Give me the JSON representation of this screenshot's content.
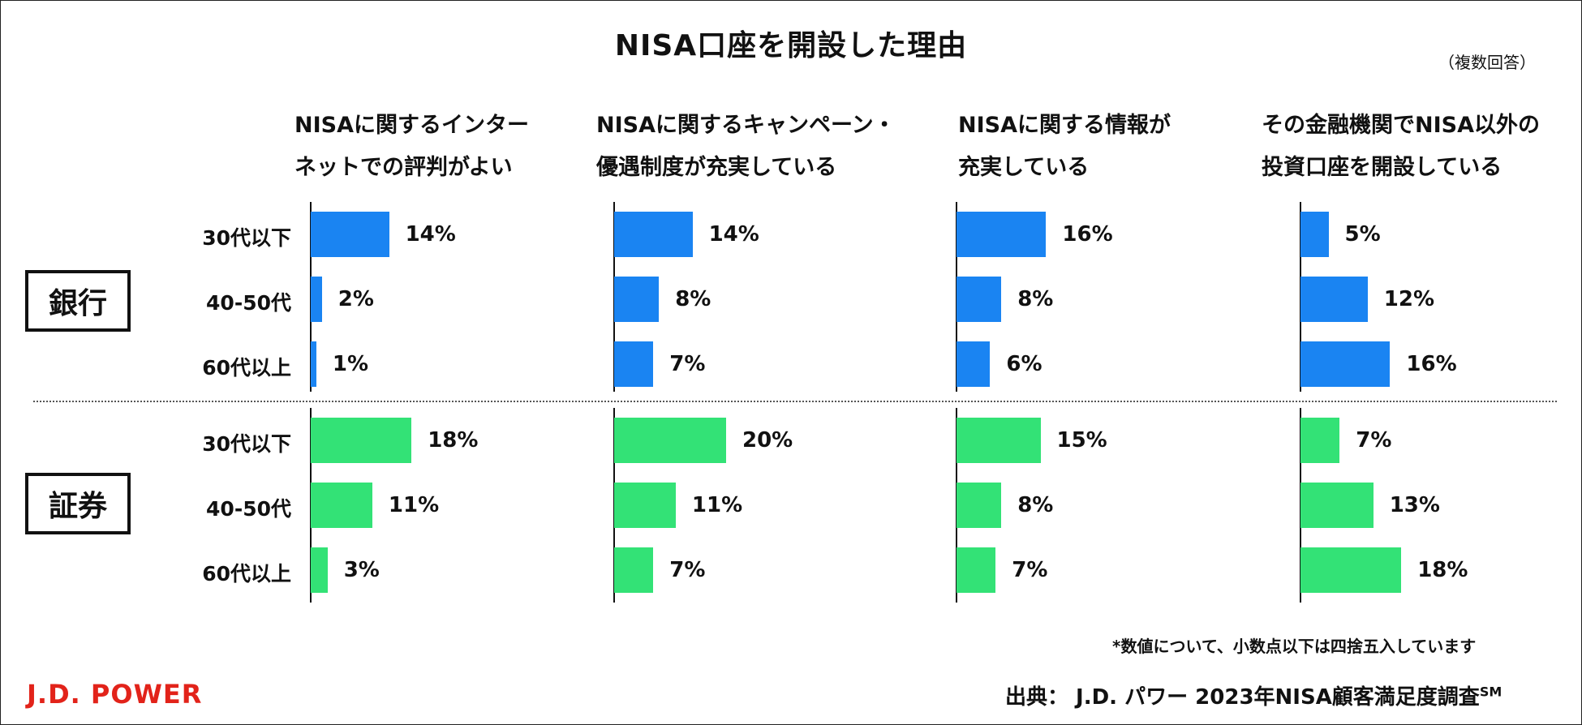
{
  "title": "NISA口座を開設した理由",
  "note": "（複数回答）",
  "columns": [
    "NISAに関するインター\nネットでの評判がよい",
    "NISAに関するキャンペーン・\n優遇制度が充実している",
    "NISAに関する情報が\n充実している",
    "その金融機関でNISA以外の\n投資口座を開設している"
  ],
  "groups": [
    {
      "label": "銀行",
      "color": "#1a84f2"
    },
    {
      "label": "証券",
      "color": "#33e276"
    }
  ],
  "age_labels": [
    "30代以下",
    "40-50代",
    "60代以上"
  ],
  "chart_data": {
    "type": "bar",
    "orientation": "horizontal",
    "title": "NISA口座を開設した理由",
    "unit": "%",
    "categories": [
      "30代以下",
      "40-50代",
      "60代以上"
    ],
    "groups": [
      "銀行",
      "証券"
    ],
    "panels": [
      {
        "name": "NISAに関するインターネットでの評判がよい",
        "series": [
          {
            "name": "銀行",
            "values": [
              14,
              2,
              1
            ]
          },
          {
            "name": "証券",
            "values": [
              18,
              11,
              3
            ]
          }
        ]
      },
      {
        "name": "NISAに関するキャンペーン・優遇制度が充実している",
        "series": [
          {
            "name": "銀行",
            "values": [
              14,
              8,
              7
            ]
          },
          {
            "name": "証券",
            "values": [
              20,
              11,
              7
            ]
          }
        ]
      },
      {
        "name": "NISAに関する情報が充実している",
        "series": [
          {
            "name": "銀行",
            "values": [
              16,
              8,
              6
            ]
          },
          {
            "name": "証券",
            "values": [
              15,
              8,
              7
            ]
          }
        ]
      },
      {
        "name": "その金融機関でNISA以外の投資口座を開設している",
        "series": [
          {
            "name": "銀行",
            "values": [
              5,
              12,
              16
            ]
          },
          {
            "name": "証券",
            "values": [
              7,
              13,
              18
            ]
          }
        ]
      }
    ]
  },
  "footnote": "*数値について、小数点以下は四捨五入しています",
  "brand": "J.D. POWER",
  "source": "出典： J.D. パワー 2023年NISA顧客満足度調査",
  "source_mark": "SM"
}
